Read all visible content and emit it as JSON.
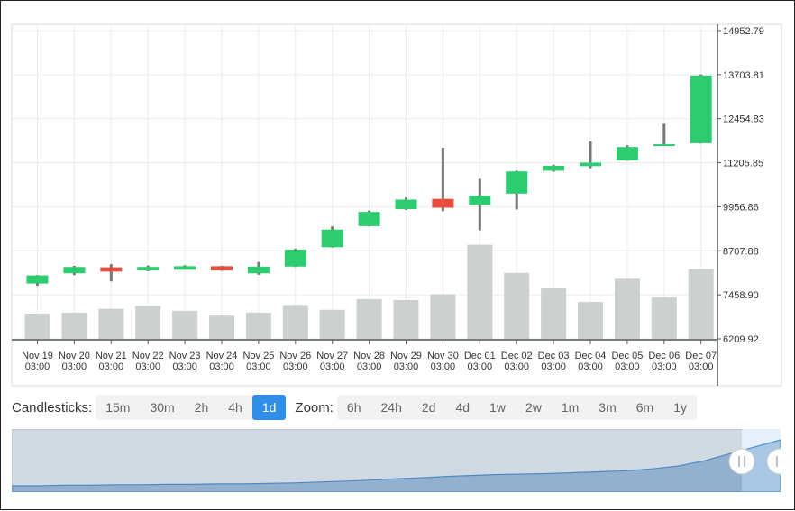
{
  "chart_data": {
    "type": "candlestick",
    "categories": [
      [
        "Nov 19",
        "03:00"
      ],
      [
        "Nov 20",
        "03:00"
      ],
      [
        "Nov 21",
        "03:00"
      ],
      [
        "Nov 22",
        "03:00"
      ],
      [
        "Nov 23",
        "03:00"
      ],
      [
        "Nov 24",
        "03:00"
      ],
      [
        "Nov 25",
        "03:00"
      ],
      [
        "Nov 26",
        "03:00"
      ],
      [
        "Nov 27",
        "03:00"
      ],
      [
        "Nov 28",
        "03:00"
      ],
      [
        "Nov 29",
        "03:00"
      ],
      [
        "Nov 30",
        "03:00"
      ],
      [
        "Dec 01",
        "03:00"
      ],
      [
        "Dec 02",
        "03:00"
      ],
      [
        "Dec 03",
        "03:00"
      ],
      [
        "Dec 04",
        "03:00"
      ],
      [
        "Dec 05",
        "03:00"
      ],
      [
        "Dec 06",
        "03:00"
      ],
      [
        "Dec 07",
        "03:00"
      ]
    ],
    "ohlc": [
      {
        "o": 7780,
        "h": 8020,
        "l": 7720,
        "c": 8010
      },
      {
        "o": 8070,
        "h": 8280,
        "l": 8020,
        "c": 8250
      },
      {
        "o": 8240,
        "h": 8330,
        "l": 7840,
        "c": 8120
      },
      {
        "o": 8150,
        "h": 8290,
        "l": 8130,
        "c": 8250
      },
      {
        "o": 8170,
        "h": 8300,
        "l": 8170,
        "c": 8270
      },
      {
        "o": 8270,
        "h": 8280,
        "l": 8140,
        "c": 8150
      },
      {
        "o": 8070,
        "h": 8390,
        "l": 8030,
        "c": 8260
      },
      {
        "o": 8260,
        "h": 8770,
        "l": 8250,
        "c": 8740
      },
      {
        "o": 8810,
        "h": 9400,
        "l": 8800,
        "c": 9310
      },
      {
        "o": 9410,
        "h": 9850,
        "l": 9400,
        "c": 9810
      },
      {
        "o": 9890,
        "h": 10220,
        "l": 9870,
        "c": 10160
      },
      {
        "o": 10180,
        "h": 11630,
        "l": 9830,
        "c": 9930
      },
      {
        "o": 10010,
        "h": 10750,
        "l": 9290,
        "c": 10270
      },
      {
        "o": 10330,
        "h": 10980,
        "l": 9880,
        "c": 10960
      },
      {
        "o": 10980,
        "h": 11150,
        "l": 10950,
        "c": 11120
      },
      {
        "o": 11110,
        "h": 11810,
        "l": 11050,
        "c": 11210
      },
      {
        "o": 11270,
        "h": 11700,
        "l": 11260,
        "c": 11650
      },
      {
        "o": 11720,
        "h": 12310,
        "l": 11700,
        "c": 11730
      },
      {
        "o": 11760,
        "h": 13710,
        "l": 11750,
        "c": 13680
      }
    ],
    "volume": [
      26,
      27,
      31,
      34,
      29,
      24,
      27,
      35,
      30,
      41,
      40,
      46,
      97,
      68,
      52,
      38,
      62,
      43,
      72
    ],
    "volume_max": 105,
    "price_axis": {
      "ticks": [
        "14952.79",
        "13703.81",
        "12454.83",
        "11205.85",
        "9956.86",
        "8707.88",
        "7458.90",
        "6209.92"
      ],
      "min": 6209.92,
      "max": 14952.79
    },
    "navigator_series": [
      0.02,
      0.02,
      0.03,
      0.03,
      0.04,
      0.04,
      0.05,
      0.05,
      0.06,
      0.06,
      0.07,
      0.08,
      0.1,
      0.12,
      0.14,
      0.17,
      0.19,
      0.22,
      0.24,
      0.26,
      0.27,
      0.28,
      0.3,
      0.32,
      0.34,
      0.38,
      0.44,
      0.55,
      0.7,
      0.85,
      1.0
    ],
    "colors": {
      "up": "#2ecc71",
      "down": "#e74c3c",
      "wick": "#777777",
      "volume": "#ccd0cf",
      "grid": "#ececec",
      "axis": "#555555"
    }
  },
  "controls": {
    "candlesticks_label": "Candlesticks:",
    "candle_buttons": [
      "15m",
      "30m",
      "2h",
      "4h",
      "1d"
    ],
    "active_candle": "1d",
    "zoom_label": "Zoom:",
    "zoom_buttons": [
      "6h",
      "24h",
      "2d",
      "4d",
      "1w",
      "2w",
      "1m",
      "3m",
      "6m",
      "1y"
    ]
  }
}
